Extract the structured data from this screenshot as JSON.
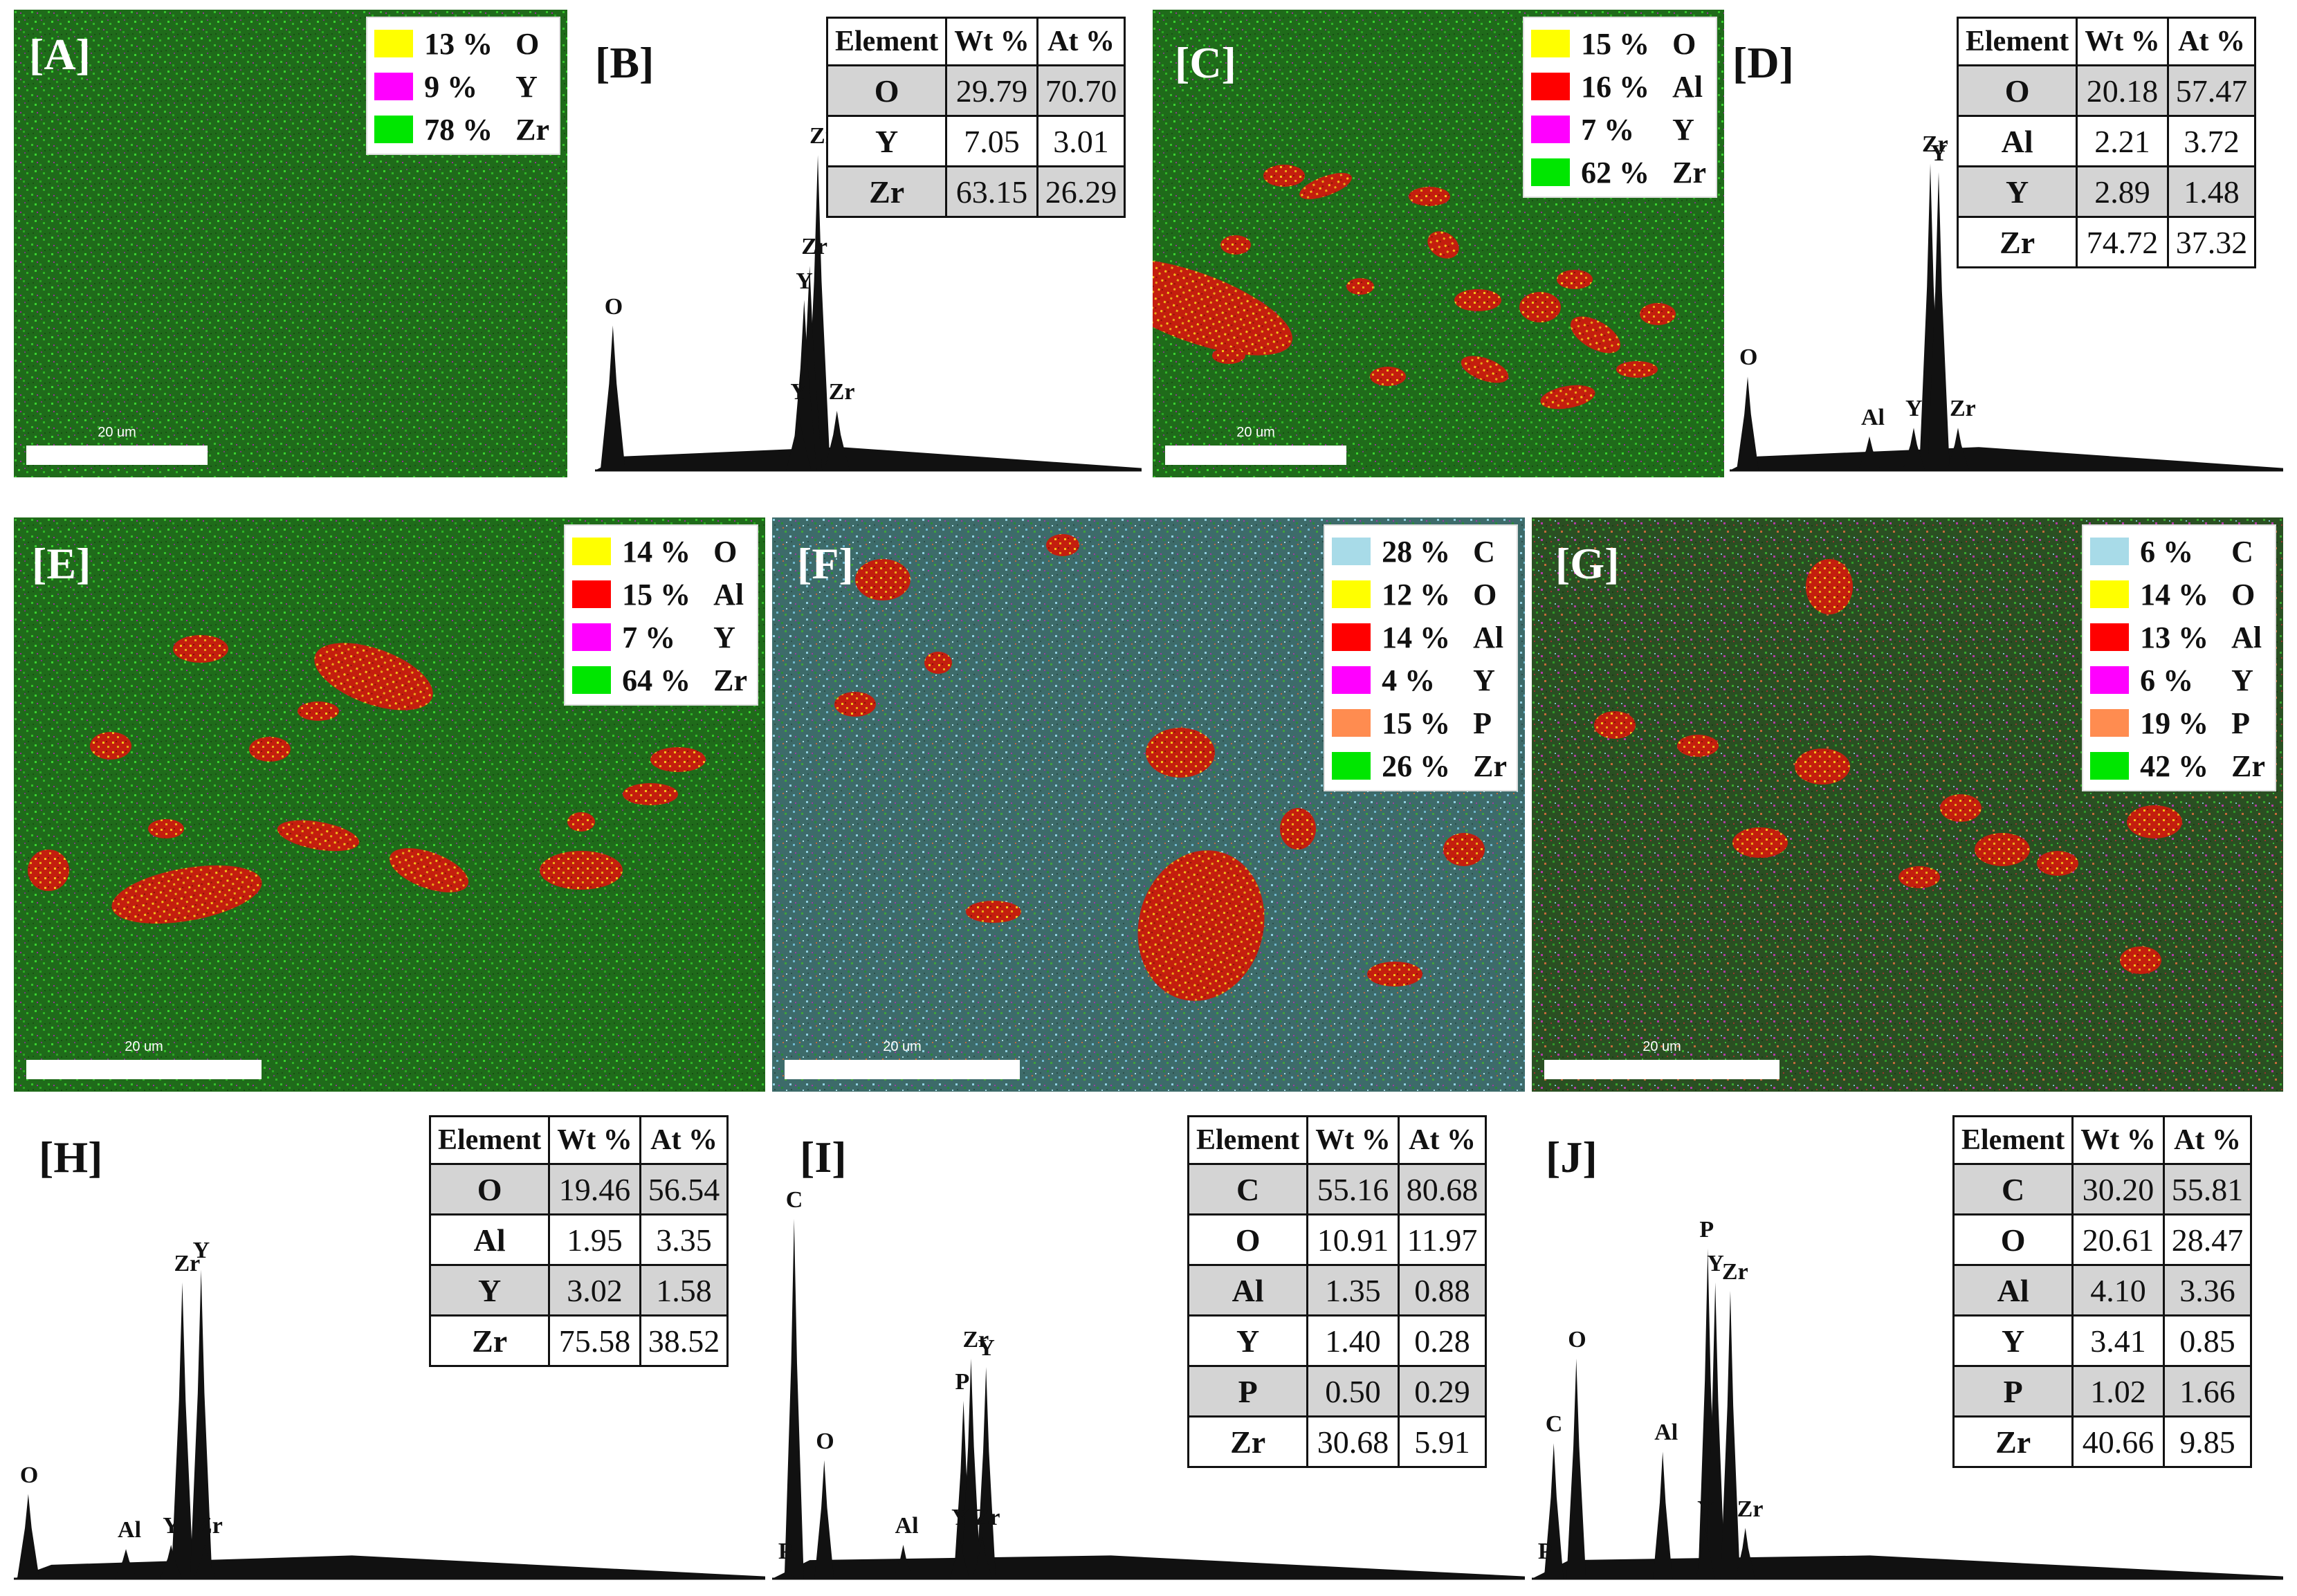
{
  "colors": {
    "C": "#a8dbe8",
    "O": "#ffff00",
    "Al": "#ff0000",
    "Y": "#ff00ff",
    "P": "#ff8c50",
    "Zr": "#00e600"
  },
  "scale_label": "20 um",
  "table_headers": [
    "Element",
    "Wt %",
    "At %"
  ],
  "panels": {
    "A": {
      "label": "[A]",
      "legend": [
        {
          "pct": "13 %",
          "el": "O"
        },
        {
          "pct": "9 %",
          "el": "Y"
        },
        {
          "pct": "78 %",
          "el": "Zr"
        }
      ]
    },
    "C": {
      "label": "[C]",
      "legend": [
        {
          "pct": "15 %",
          "el": "O"
        },
        {
          "pct": "16 %",
          "el": "Al"
        },
        {
          "pct": "7 %",
          "el": "Y"
        },
        {
          "pct": "62 %",
          "el": "Zr"
        }
      ]
    },
    "E": {
      "label": "[E]",
      "legend": [
        {
          "pct": "14 %",
          "el": "O"
        },
        {
          "pct": "15 %",
          "el": "Al"
        },
        {
          "pct": "7 %",
          "el": "Y"
        },
        {
          "pct": "64 %",
          "el": "Zr"
        }
      ]
    },
    "F": {
      "label": "[F]",
      "legend": [
        {
          "pct": "28 %",
          "el": "C"
        },
        {
          "pct": "12 %",
          "el": "O"
        },
        {
          "pct": "14 %",
          "el": "Al"
        },
        {
          "pct": "4 %",
          "el": "Y"
        },
        {
          "pct": "15 %",
          "el": "P"
        },
        {
          "pct": "26 %",
          "el": "Zr"
        }
      ]
    },
    "G": {
      "label": "[G]",
      "legend": [
        {
          "pct": "6 %",
          "el": "C"
        },
        {
          "pct": "14 %",
          "el": "O"
        },
        {
          "pct": "13 %",
          "el": "Al"
        },
        {
          "pct": "6 %",
          "el": "Y"
        },
        {
          "pct": "19 %",
          "el": "P"
        },
        {
          "pct": "42 %",
          "el": "Zr"
        }
      ]
    },
    "B": {
      "label": "[B]"
    },
    "D": {
      "label": "[D]"
    },
    "H": {
      "label": "[H]"
    },
    "I": {
      "label": "[I]"
    },
    "J": {
      "label": "[J]"
    }
  },
  "chart_data": [
    {
      "panel": "B",
      "type": "table",
      "rows": [
        [
          "O",
          "29.79",
          "70.70"
        ],
        [
          "Y",
          "7.05",
          "3.01"
        ],
        [
          "Zr",
          "63.15",
          "26.29"
        ]
      ],
      "spectrum_peaks": [
        {
          "label": "O",
          "height": 0.34
        },
        {
          "label": "Zr",
          "height": 0.74
        },
        {
          "label": "Zr",
          "height": 0.48
        },
        {
          "label": "Y",
          "height": 0.4
        },
        {
          "label": "Y",
          "height": 0.14
        },
        {
          "label": "Zr",
          "height": 0.14
        }
      ]
    },
    {
      "panel": "D",
      "type": "table",
      "rows": [
        [
          "O",
          "20.18",
          "57.47"
        ],
        [
          "Al",
          "2.21",
          "3.72"
        ],
        [
          "Y",
          "2.89",
          "1.48"
        ],
        [
          "Zr",
          "74.72",
          "37.32"
        ]
      ],
      "spectrum_peaks": [
        {
          "label": "O",
          "height": 0.22
        },
        {
          "label": "Al",
          "height": 0.08
        },
        {
          "label": "Zr",
          "height": 0.72
        },
        {
          "label": "Y",
          "height": 0.7
        },
        {
          "label": "Y",
          "height": 0.1
        },
        {
          "label": "Zr",
          "height": 0.1
        }
      ]
    },
    {
      "panel": "H",
      "type": "table",
      "rows": [
        [
          "O",
          "19.46",
          "56.54"
        ],
        [
          "Al",
          "1.95",
          "3.35"
        ],
        [
          "Y",
          "3.02",
          "1.58"
        ],
        [
          "Zr",
          "75.58",
          "38.52"
        ]
      ],
      "spectrum_peaks": [
        {
          "label": "O",
          "height": 0.2
        },
        {
          "label": "Al",
          "height": 0.07
        },
        {
          "label": "Zr",
          "height": 0.7
        },
        {
          "label": "Y",
          "height": 0.73
        },
        {
          "label": "Y",
          "height": 0.08
        },
        {
          "label": "Zr",
          "height": 0.08
        }
      ]
    },
    {
      "panel": "I",
      "type": "table",
      "rows": [
        [
          "C",
          "55.16",
          "80.68"
        ],
        [
          "O",
          "10.91",
          "11.97"
        ],
        [
          "Al",
          "1.35",
          "0.88"
        ],
        [
          "Y",
          "1.40",
          "0.28"
        ],
        [
          "P",
          "0.50",
          "0.29"
        ],
        [
          "Zr",
          "30.68",
          "5.91"
        ]
      ],
      "spectrum_peaks": [
        {
          "label": "C",
          "height": 0.85
        },
        {
          "label": "P",
          "height": 0.02
        },
        {
          "label": "O",
          "height": 0.28
        },
        {
          "label": "Al",
          "height": 0.08
        },
        {
          "label": "P",
          "height": 0.42
        },
        {
          "label": "Zr",
          "height": 0.52
        },
        {
          "label": "Y",
          "height": 0.5
        },
        {
          "label": "Y",
          "height": 0.1
        },
        {
          "label": "Zr",
          "height": 0.1
        }
      ]
    },
    {
      "panel": "J",
      "type": "table",
      "rows": [
        [
          "C",
          "30.20",
          "55.81"
        ],
        [
          "O",
          "20.61",
          "28.47"
        ],
        [
          "Al",
          "4.10",
          "3.36"
        ],
        [
          "Y",
          "3.41",
          "0.85"
        ],
        [
          "P",
          "1.02",
          "1.66"
        ],
        [
          "Zr",
          "40.66",
          "9.85"
        ]
      ],
      "spectrum_peaks": [
        {
          "label": "C",
          "height": 0.32
        },
        {
          "label": "P",
          "height": 0.02
        },
        {
          "label": "O",
          "height": 0.52
        },
        {
          "label": "Al",
          "height": 0.3
        },
        {
          "label": "P",
          "height": 0.78
        },
        {
          "label": "Y",
          "height": 0.7
        },
        {
          "label": "Zr",
          "height": 0.68
        },
        {
          "label": "Y",
          "height": 0.12
        },
        {
          "label": "Zr",
          "height": 0.12
        }
      ]
    }
  ]
}
